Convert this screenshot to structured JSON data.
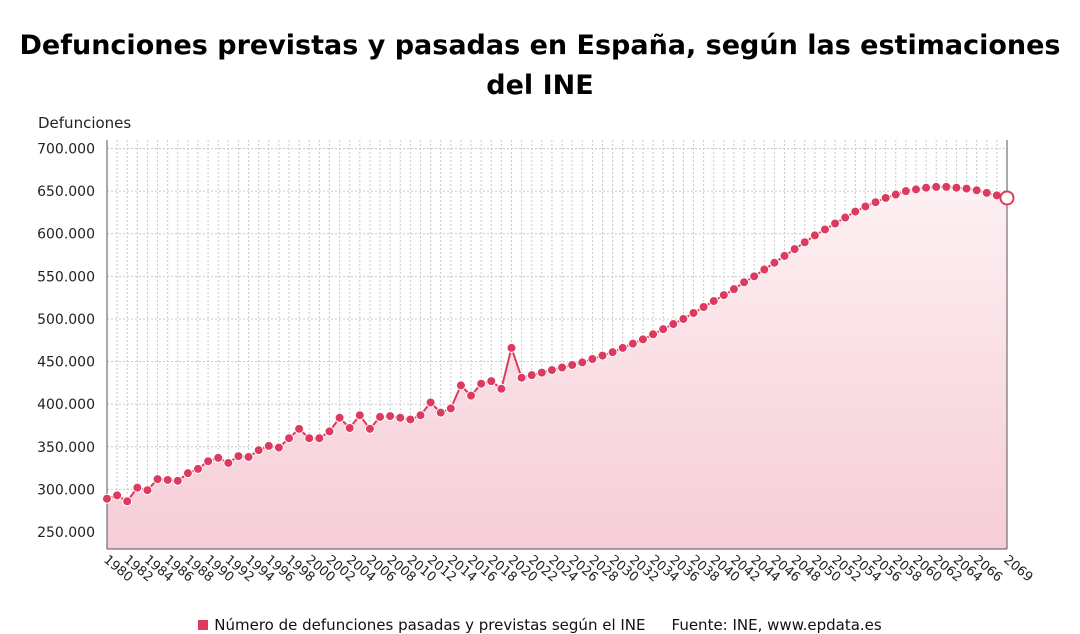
{
  "colors": {
    "series": "#dc3b5f",
    "area_top": "#f9dbe2",
    "area_bottom": "#f6cdd7",
    "grid": "#c9c9c9",
    "axis": "#555555",
    "text": "#222222"
  },
  "legend_entry": "Número de defunciones pasadas y previstas según el INE",
  "source_text": "Fuente: INE, www.epdata.es",
  "chart_data": {
    "type": "area",
    "title": "Defunciones previstas y pasadas en España, según las estimaciones del INE",
    "ylabel": "Defunciones",
    "xlabel": "",
    "ylim": [
      230000,
      710000
    ],
    "yticks": [
      250000,
      300000,
      350000,
      400000,
      450000,
      500000,
      550000,
      600000,
      650000,
      700000
    ],
    "ytick_labels": [
      "250.000",
      "300.000",
      "350.000",
      "400.000",
      "450.000",
      "500.000",
      "550.000",
      "600.000",
      "650.000",
      "700.000"
    ],
    "xlim": [
      1980,
      2069
    ],
    "xtick_labels": [
      "1980",
      "1982",
      "1984",
      "1986",
      "1988",
      "1990",
      "1992",
      "1994",
      "1996",
      "1998",
      "2000",
      "2002",
      "2004",
      "2006",
      "2008",
      "2010",
      "2012",
      "2014",
      "2016",
      "2018",
      "2020",
      "2022",
      "2024",
      "2026",
      "2028",
      "2030",
      "2032",
      "2034",
      "2036",
      "2038",
      "2040",
      "2042",
      "2044",
      "2046",
      "2048",
      "2050",
      "2052",
      "2054",
      "2056",
      "2058",
      "2060",
      "2062",
      "2064",
      "2066",
      "2069"
    ],
    "grid": true,
    "legend_position": "bottom",
    "series": [
      {
        "name": "Número de defunciones pasadas y previstas según el INE",
        "x": [
          1980,
          1981,
          1982,
          1983,
          1984,
          1985,
          1986,
          1987,
          1988,
          1989,
          1990,
          1991,
          1992,
          1993,
          1994,
          1995,
          1996,
          1997,
          1998,
          1999,
          2000,
          2001,
          2002,
          2003,
          2004,
          2005,
          2006,
          2007,
          2008,
          2009,
          2010,
          2011,
          2012,
          2013,
          2014,
          2015,
          2016,
          2017,
          2018,
          2019,
          2020,
          2021,
          2022,
          2023,
          2024,
          2025,
          2026,
          2027,
          2028,
          2029,
          2030,
          2031,
          2032,
          2033,
          2034,
          2035,
          2036,
          2037,
          2038,
          2039,
          2040,
          2041,
          2042,
          2043,
          2044,
          2045,
          2046,
          2047,
          2048,
          2049,
          2050,
          2051,
          2052,
          2053,
          2054,
          2055,
          2056,
          2057,
          2058,
          2059,
          2060,
          2061,
          2062,
          2063,
          2064,
          2065,
          2066,
          2067,
          2068,
          2069
        ],
        "values": [
          289000,
          293000,
          286000,
          302000,
          299000,
          312000,
          311000,
          310000,
          319000,
          324000,
          333000,
          337000,
          331000,
          339000,
          338000,
          346000,
          351000,
          349000,
          360000,
          371000,
          360000,
          360000,
          368000,
          384000,
          372000,
          387000,
          371000,
          385000,
          386000,
          384000,
          382000,
          387000,
          402000,
          390000,
          395000,
          422000,
          410000,
          424000,
          427000,
          418000,
          466000,
          431000,
          434000,
          437000,
          440000,
          443000,
          446000,
          449000,
          453000,
          457000,
          461000,
          466000,
          471000,
          476000,
          482000,
          488000,
          494000,
          500000,
          507000,
          514000,
          521000,
          528000,
          535000,
          543000,
          550000,
          558000,
          566000,
          574000,
          582000,
          590000,
          598000,
          605000,
          612000,
          619000,
          626000,
          632000,
          637000,
          642000,
          646000,
          650000,
          652000,
          654000,
          655000,
          655000,
          654000,
          653000,
          651000,
          648000,
          645000,
          642000
        ]
      }
    ]
  }
}
